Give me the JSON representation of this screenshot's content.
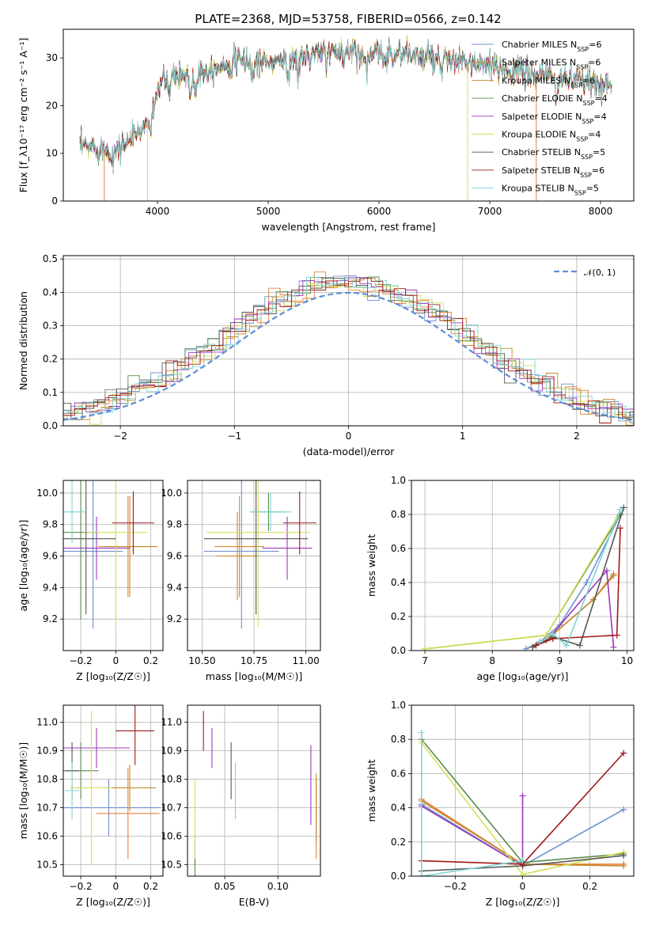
{
  "title": "PLATE=2368, MJD=53758, FIBERID=0566, z=0.142",
  "colors": {
    "Chabrier MILES": "#6f8fd1",
    "Salpeter MILES": "#e6813a",
    "Kroupa MILES": "#c28a2a",
    "Chabrier ELODIE": "#5a8a4a",
    "Salpeter ELODIE": "#9b39b8",
    "Kroupa ELODIE": "#d4e05a",
    "Chabrier STELIB": "#555555",
    "Salpeter STELIB": "#a01818",
    "Kroupa STELIB": "#7fd3d7",
    "normal": "#5b8fd6"
  },
  "chart_data": [
    {
      "type": "line",
      "name": "spectrum",
      "xlabel": "wavelength [Angstrom, rest frame]",
      "ylabel": "Flux [f_λ10⁻¹⁷ erg cm⁻² s⁻¹ A⁻¹]",
      "xlim": [
        3150,
        8300
      ],
      "ylim": [
        0,
        36
      ],
      "xticks": [
        4000,
        5000,
        6000,
        7000,
        8000
      ],
      "yticks": [
        0,
        10,
        20,
        30
      ],
      "grid": false,
      "legend_position": "right",
      "legend": [
        {
          "name": "Chabrier MILES",
          "nssp": "6"
        },
        {
          "name": "Salpeter MILES",
          "nssp": "6"
        },
        {
          "name": "Kroupa MILES",
          "nssp": "6"
        },
        {
          "name": "Chabrier ELODIE",
          "nssp": "4"
        },
        {
          "name": "Salpeter ELODIE",
          "nssp": "4"
        },
        {
          "name": "Kroupa ELODIE",
          "nssp": "4"
        },
        {
          "name": "Chabrier STELIB",
          "nssp": "5"
        },
        {
          "name": "Salpeter STELIB",
          "nssp": "6"
        },
        {
          "name": "Kroupa STELIB",
          "nssp": "5"
        }
      ],
      "continuum": [
        [
          3300,
          11.5
        ],
        [
          3500,
          11
        ],
        [
          3600,
          10
        ],
        [
          3700,
          12
        ],
        [
          3800,
          14
        ],
        [
          3900,
          16
        ],
        [
          3950,
          20
        ],
        [
          4000,
          24
        ],
        [
          4100,
          26
        ],
        [
          4300,
          26.5
        ],
        [
          4500,
          28
        ],
        [
          4800,
          29.5
        ],
        [
          5000,
          29
        ],
        [
          5200,
          30
        ],
        [
          5400,
          30.5
        ],
        [
          5600,
          31
        ],
        [
          5800,
          31.5
        ],
        [
          6000,
          30.5
        ],
        [
          6200,
          31
        ],
        [
          6400,
          30
        ],
        [
          6600,
          29.5
        ],
        [
          6800,
          29
        ],
        [
          7000,
          28
        ],
        [
          7200,
          27.5
        ],
        [
          7400,
          26.5
        ],
        [
          7600,
          26
        ],
        [
          7800,
          25
        ],
        [
          8000,
          24.5
        ],
        [
          8100,
          25
        ]
      ]
    },
    {
      "type": "bar",
      "name": "residual_histogram",
      "xlabel": "(data-model)/error",
      "ylabel": "Normed distribution",
      "xlim": [
        -2.5,
        2.5
      ],
      "ylim": [
        0,
        0.51
      ],
      "xticks": [
        -2,
        -1,
        0,
        1,
        2
      ],
      "yticks": [
        0.0,
        0.1,
        0.2,
        0.3,
        0.4,
        0.5
      ],
      "grid": true,
      "legend_position": "top-right",
      "legend_label": "𝒩(0, 1)",
      "bin_width": 0.1
    },
    {
      "type": "scatter",
      "name": "age_vs_Z",
      "xlabel": "Z [log₁₀(Z/Z☉)]",
      "ylabel": "age  [log₁₀(age/yr)]",
      "xlim": [
        -0.3,
        0.27
      ],
      "ylim": [
        9.0,
        10.08
      ],
      "xticks": [
        -0.2,
        0.0,
        0.2
      ],
      "yticks": [
        9.2,
        9.4,
        9.6,
        9.8,
        10.0
      ],
      "grid": true,
      "points": [
        {
          "series": "Chabrier MILES",
          "x": -0.13,
          "xerr": 0.17,
          "y": 9.63,
          "yerr": 0.49
        },
        {
          "series": "Salpeter MILES",
          "x": 0.07,
          "xerr": 0.17,
          "y": 9.66,
          "yerr": 0.32
        },
        {
          "series": "Kroupa MILES",
          "x": 0.08,
          "xerr": 0.15,
          "y": 9.66,
          "yerr": 0.32
        },
        {
          "series": "Chabrier ELODIE",
          "x": -0.2,
          "xerr": 0.1,
          "y": 9.75,
          "yerr": 0.55
        },
        {
          "series": "Salpeter ELODIE",
          "x": -0.11,
          "xerr": 0.19,
          "y": 9.65,
          "yerr": 0.2
        },
        {
          "series": "Kroupa ELODIE",
          "x": 0.0,
          "xerr": 0.18,
          "y": 9.75,
          "yerr": 0.6
        },
        {
          "series": "Chabrier STELIB",
          "x": -0.17,
          "xerr": 0.17,
          "y": 9.71,
          "yerr": 0.48
        },
        {
          "series": "Salpeter STELIB",
          "x": 0.1,
          "xerr": 0.12,
          "y": 9.81,
          "yerr": 0.2
        },
        {
          "series": "Kroupa STELIB",
          "x": -0.25,
          "xerr": 0.08,
          "y": 9.88,
          "yerr": 0.2
        }
      ]
    },
    {
      "type": "scatter",
      "name": "age_vs_mass",
      "xlabel": "mass [log₁₀(M/M☉)]",
      "ylabel": "",
      "xlim": [
        10.43,
        11.07
      ],
      "ylim": [
        9.0,
        10.08
      ],
      "xticks": [
        10.5,
        10.75,
        11.0
      ],
      "xticklabels": [
        "10.50",
        "10.75",
        "11.00"
      ],
      "yticks": [
        9.2,
        9.4,
        9.6,
        9.8,
        10.0
      ],
      "grid": true,
      "points": [
        {
          "series": "Chabrier MILES",
          "x": 10.69,
          "xerr": 0.18,
          "y": 9.63,
          "yerr": 0.49
        },
        {
          "series": "Salpeter MILES",
          "x": 10.68,
          "xerr": 0.12,
          "y": 9.66,
          "yerr": 0.32
        },
        {
          "series": "Kroupa MILES",
          "x": 10.67,
          "xerr": 0.1,
          "y": 9.6,
          "yerr": 0.28
        },
        {
          "series": "Chabrier ELODIE",
          "x": 10.82,
          "xerr": 0.08,
          "y": 9.88,
          "yerr": 0.12
        },
        {
          "series": "Salpeter ELODIE",
          "x": 10.91,
          "xerr": 0.12,
          "y": 9.65,
          "yerr": 0.2
        },
        {
          "series": "Kroupa ELODIE",
          "x": 10.77,
          "xerr": 0.25,
          "y": 9.75,
          "yerr": 0.6
        },
        {
          "series": "Chabrier STELIB",
          "x": 10.76,
          "xerr": 0.25,
          "y": 9.71,
          "yerr": 0.48
        },
        {
          "series": "Salpeter STELIB",
          "x": 10.97,
          "xerr": 0.08,
          "y": 9.81,
          "yerr": 0.2
        },
        {
          "series": "Kroupa STELIB",
          "x": 10.83,
          "xerr": 0.1,
          "y": 9.88,
          "yerr": 0.12
        }
      ]
    },
    {
      "type": "line",
      "name": "cumulative_mass_weight_vs_age",
      "xlabel": "age  [log₁₀(age/yr)]",
      "ylabel": "mass weight",
      "xlim": [
        6.8,
        10.1
      ],
      "ylim": [
        0,
        1.0
      ],
      "xticks": [
        7,
        8,
        9,
        10
      ],
      "yticks": [
        0.0,
        0.2,
        0.4,
        0.6,
        0.8,
        1.0
      ],
      "grid": true,
      "series": [
        {
          "name": "Chabrier MILES",
          "points": [
            [
              8.5,
              0.01
            ],
            [
              8.7,
              0.05
            ],
            [
              9.0,
              0.15
            ],
            [
              9.4,
              0.4
            ],
            [
              9.9,
              0.8
            ]
          ]
        },
        {
          "name": "Salpeter MILES",
          "points": [
            [
              8.6,
              0.02
            ],
            [
              8.8,
              0.06
            ],
            [
              9.5,
              0.3
            ],
            [
              9.8,
              0.45
            ]
          ]
        },
        {
          "name": "Kroupa MILES",
          "points": [
            [
              8.6,
              0.02
            ],
            [
              8.8,
              0.06
            ],
            [
              9.5,
              0.3
            ],
            [
              9.8,
              0.44
            ]
          ]
        },
        {
          "name": "Chabrier ELODIE",
          "points": [
            [
              7.0,
              0.01
            ],
            [
              8.8,
              0.09
            ],
            [
              9.9,
              0.8
            ]
          ]
        },
        {
          "name": "Salpeter ELODIE",
          "points": [
            [
              8.7,
              0.05
            ],
            [
              8.9,
              0.1
            ],
            [
              9.7,
              0.47
            ],
            [
              9.8,
              0.02
            ]
          ]
        },
        {
          "name": "Kroupa ELODIE",
          "points": [
            [
              7.0,
              0.01
            ],
            [
              8.8,
              0.09
            ],
            [
              9.85,
              0.78
            ]
          ]
        },
        {
          "name": "Chabrier STELIB",
          "points": [
            [
              8.6,
              0.02
            ],
            [
              8.9,
              0.08
            ],
            [
              9.3,
              0.03
            ],
            [
              9.95,
              0.84
            ]
          ]
        },
        {
          "name": "Salpeter STELIB",
          "points": [
            [
              8.65,
              0.03
            ],
            [
              8.9,
              0.07
            ],
            [
              9.85,
              0.09
            ],
            [
              9.9,
              0.72
            ]
          ]
        },
        {
          "name": "Kroupa STELIB",
          "points": [
            [
              8.7,
              0.05
            ],
            [
              8.9,
              0.1
            ],
            [
              9.1,
              0.03
            ],
            [
              9.9,
              0.83
            ]
          ]
        }
      ]
    },
    {
      "type": "scatter",
      "name": "mass_vs_Z",
      "xlabel": "Z [log₁₀(Z/Z☉)]",
      "ylabel": "mass [log₁₀(M/M☉)]",
      "xlim": [
        -0.3,
        0.27
      ],
      "ylim": [
        10.46,
        11.06
      ],
      "xticks": [
        -0.2,
        0.0,
        0.2
      ],
      "yticks": [
        10.5,
        10.6,
        10.7,
        10.8,
        10.9,
        11.0
      ],
      "grid": true,
      "points": [
        {
          "series": "Chabrier MILES",
          "x": -0.04,
          "xerr": 0.29,
          "y": 10.7,
          "yerr": 0.1
        },
        {
          "series": "Salpeter MILES",
          "x": 0.07,
          "xerr": 0.18,
          "y": 10.68,
          "yerr": 0.16
        },
        {
          "series": "Kroupa MILES",
          "x": 0.08,
          "xerr": 0.15,
          "y": 10.77,
          "yerr": 0.08
        },
        {
          "series": "Chabrier ELODIE",
          "x": -0.2,
          "xerr": 0.1,
          "y": 10.83,
          "yerr": 0.1
        },
        {
          "series": "Salpeter ELODIE",
          "x": -0.11,
          "xerr": 0.19,
          "y": 10.91,
          "yerr": 0.07
        },
        {
          "series": "Kroupa ELODIE",
          "x": -0.14,
          "xerr": 0.12,
          "y": 10.77,
          "yerr": 0.27
        },
        {
          "series": "Chabrier STELIB",
          "x": -0.25,
          "xerr": 0.04,
          "y": 10.83,
          "yerr": 0.1
        },
        {
          "series": "Salpeter STELIB",
          "x": 0.11,
          "xerr": 0.11,
          "y": 10.97,
          "yerr": 0.12
        },
        {
          "series": "Kroupa STELIB",
          "x": -0.25,
          "xerr": 0.04,
          "y": 10.76,
          "yerr": 0.1
        }
      ]
    },
    {
      "type": "scatter",
      "name": "mass_vs_EBV",
      "xlabel": "E(B-V)",
      "ylabel": "",
      "xlim": [
        0.015,
        0.14
      ],
      "ylim": [
        10.46,
        11.06
      ],
      "xticks": [
        0.05,
        0.1
      ],
      "xticklabels": [
        "0.05",
        "0.10"
      ],
      "yticks": [
        10.5,
        10.6,
        10.7,
        10.8,
        10.9,
        11.0
      ],
      "grid": true,
      "points": [
        {
          "series": "Chabrier MILES",
          "x": 0.022,
          "y": 10.55,
          "yerr": 0.05
        },
        {
          "series": "Salpeter MILES",
          "x": 0.136,
          "y": 10.66,
          "yerr": 0.14
        },
        {
          "series": "Kroupa MILES",
          "x": 0.136,
          "y": 10.7,
          "yerr": 0.12
        },
        {
          "series": "Chabrier ELODIE",
          "x": 0.022,
          "y": 10.49,
          "yerr": 0.03
        },
        {
          "series": "Salpeter ELODIE",
          "x": 0.038,
          "y": 10.91,
          "yerr": 0.07
        },
        {
          "series": "Kroupa ELODIE",
          "x": 0.022,
          "y": 10.66,
          "yerr": 0.14
        },
        {
          "series": "Chabrier STELIB",
          "x": 0.056,
          "y": 10.83,
          "yerr": 0.1
        },
        {
          "series": "Salpeter STELIB",
          "x": 0.03,
          "y": 10.97,
          "yerr": 0.07
        },
        {
          "series": "Kroupa STELIB",
          "x": 0.06,
          "y": 10.76,
          "yerr": 0.1
        },
        {
          "series": "Salpeter ELODIE",
          "x": 0.131,
          "y": 10.78,
          "yerr": 0.14
        }
      ]
    },
    {
      "type": "line",
      "name": "mass_weight_vs_Z",
      "xlabel": "Z [log₁₀(Z/Z☉)]",
      "ylabel": "mass weight",
      "xlim": [
        -0.33,
        0.33
      ],
      "ylim": [
        0,
        1.0
      ],
      "xticks": [
        -0.2,
        0.0,
        0.2
      ],
      "yticks": [
        0.0,
        0.2,
        0.4,
        0.6,
        0.8,
        1.0
      ],
      "grid": true,
      "series": [
        {
          "name": "Chabrier MILES",
          "points": [
            [
              -0.3,
              0.42
            ],
            [
              0.0,
              0.06
            ],
            [
              0.3,
              0.39
            ]
          ]
        },
        {
          "name": "Salpeter MILES",
          "points": [
            [
              -0.3,
              0.45
            ],
            [
              0.0,
              0.07
            ],
            [
              0.3,
              0.07
            ]
          ]
        },
        {
          "name": "Kroupa MILES",
          "points": [
            [
              -0.3,
              0.44
            ],
            [
              0.0,
              0.07
            ],
            [
              0.3,
              0.06
            ]
          ]
        },
        {
          "name": "Chabrier ELODIE",
          "points": [
            [
              -0.3,
              0.8
            ],
            [
              0.0,
              0.08
            ],
            [
              0.3,
              0.13
            ]
          ]
        },
        {
          "name": "Salpeter ELODIE",
          "points": [
            [
              -0.3,
              0.41
            ],
            [
              0.0,
              0.06
            ],
            [
              0.0,
              0.47
            ]
          ]
        },
        {
          "name": "Kroupa ELODIE",
          "points": [
            [
              -0.3,
              0.78
            ],
            [
              0.0,
              0.01
            ],
            [
              0.3,
              0.14
            ]
          ]
        },
        {
          "name": "Chabrier STELIB",
          "points": [
            [
              -0.3,
              0.03
            ],
            [
              0.0,
              0.06
            ],
            [
              0.3,
              0.12
            ]
          ]
        },
        {
          "name": "Salpeter STELIB",
          "points": [
            [
              -0.3,
              0.09
            ],
            [
              0.0,
              0.07
            ],
            [
              0.3,
              0.72
            ]
          ]
        },
        {
          "name": "Kroupa STELIB",
          "points": [
            [
              -0.3,
              0.84
            ],
            [
              -0.3,
              0.0
            ],
            [
              0.0,
              0.09
            ]
          ]
        }
      ]
    }
  ]
}
